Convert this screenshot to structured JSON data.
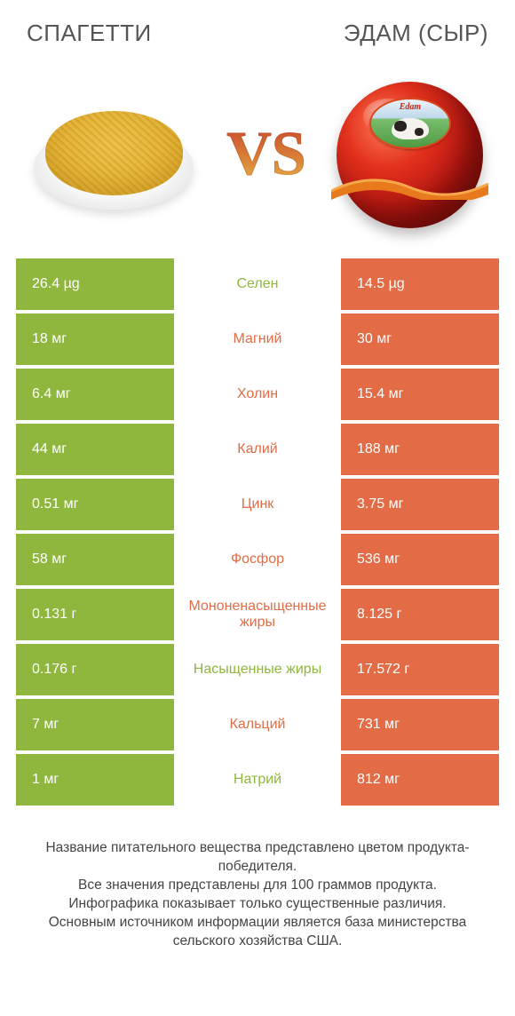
{
  "colors": {
    "green": "#8fb73e",
    "orange": "#e36c46",
    "green_text": "#8fb73e",
    "orange_text": "#e36c46",
    "title_text": "#555555"
  },
  "header": {
    "left_title": "СПАГЕТТИ",
    "right_title": "ЭДАМ (СЫР)"
  },
  "vs_label": "VS",
  "cheese_label": "Edam",
  "rows": [
    {
      "left": "26.4 µg",
      "mid": "Селен",
      "right": "14.5 µg",
      "winner": "left"
    },
    {
      "left": "18 мг",
      "mid": "Магний",
      "right": "30 мг",
      "winner": "right"
    },
    {
      "left": "6.4 мг",
      "mid": "Холин",
      "right": "15.4 мг",
      "winner": "right"
    },
    {
      "left": "44 мг",
      "mid": "Калий",
      "right": "188 мг",
      "winner": "right"
    },
    {
      "left": "0.51 мг",
      "mid": "Цинк",
      "right": "3.75 мг",
      "winner": "right"
    },
    {
      "left": "58 мг",
      "mid": "Фосфор",
      "right": "536 мг",
      "winner": "right"
    },
    {
      "left": "0.131 г",
      "mid": "Мононенасыщенные жиры",
      "right": "8.125 г",
      "winner": "right"
    },
    {
      "left": "0.176 г",
      "mid": "Насыщенные жиры",
      "right": "17.572 г",
      "winner": "left"
    },
    {
      "left": "7 мг",
      "mid": "Кальций",
      "right": "731 мг",
      "winner": "right"
    },
    {
      "left": "1 мг",
      "mid": "Натрий",
      "right": "812 мг",
      "winner": "left"
    }
  ],
  "footer_lines": [
    "Название питательного вещества представлено цветом продукта-победителя.",
    "Все значения представлены для 100 граммов продукта.",
    "Инфографика показывает только существенные различия.",
    "Основным источником информации является база министерства сельского хозяйства США."
  ]
}
